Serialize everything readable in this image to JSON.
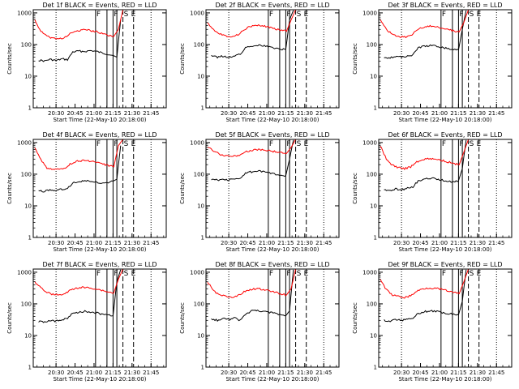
{
  "chart_data": {
    "type": "line",
    "x_ticks": [
      "20:30",
      "20:45",
      "21:00",
      "21:15",
      "21:30",
      "21:45"
    ],
    "y_ticks": [
      "1",
      "10",
      "100",
      "1000"
    ],
    "ylabel": "Counts/sec",
    "xlabel": "Start Time (22-May-10 20:18:00)",
    "xlim": [
      20.2,
      21.95
    ],
    "ylim_log10": [
      0,
      3.1
    ],
    "legend_series": {
      "events": "BLACK = Events",
      "lld": "RED = LLD"
    },
    "series_colors": {
      "events": "#000000",
      "lld": "#ff0000"
    },
    "interval_marker": "F",
    "other_markers": [
      "S",
      "E"
    ],
    "panels": [
      {
        "title": "Det 1f  BLACK = Events, RED = LLD",
        "markers": {
          "F": [
            [
              21.02,
              21.17
            ],
            [
              21.25,
              21.3
            ]
          ],
          "S": 21.38,
          "E": 21.52
        },
        "series": [
          {
            "name": "Events",
            "x": [
              20.27,
              20.35,
              20.42,
              20.5,
              20.58,
              20.65,
              20.72,
              20.8,
              20.88,
              20.95,
              21.02,
              21.1,
              21.17,
              21.25,
              21.3,
              21.35
            ],
            "values": [
              32,
              30,
              34,
              31,
              35,
              33,
              58,
              62,
              60,
              64,
              61,
              55,
              50,
              45,
              40,
              600
            ]
          },
          {
            "name": "LLD",
            "x": [
              20.22,
              20.3,
              20.38,
              20.46,
              20.54,
              20.62,
              20.7,
              20.78,
              20.86,
              20.94,
              21.02,
              21.1,
              21.18,
              21.26,
              21.32,
              21.38
            ],
            "values": [
              600,
              260,
              180,
              160,
              150,
              170,
              230,
              270,
              290,
              280,
              260,
              230,
              200,
              180,
              300,
              1500
            ]
          }
        ]
      },
      {
        "title": "Det 2f  BLACK = Events, RED = LLD",
        "markers": {
          "F": [
            [
              21.02,
              21.17
            ],
            [
              21.25,
              21.3
            ]
          ],
          "S": 21.38,
          "E": 21.52
        },
        "series": [
          {
            "name": "Events",
            "x": [
              20.27,
              20.35,
              20.42,
              20.5,
              20.58,
              20.65,
              20.72,
              20.8,
              20.88,
              20.95,
              21.02,
              21.1,
              21.17,
              21.25,
              21.3,
              21.35
            ],
            "values": [
              45,
              40,
              43,
              39,
              45,
              48,
              80,
              90,
              95,
              92,
              85,
              78,
              72,
              70,
              600,
              1200
            ]
          },
          {
            "name": "LLD",
            "x": [
              20.22,
              20.3,
              20.38,
              20.46,
              20.54,
              20.62,
              20.7,
              20.78,
              20.86,
              20.94,
              21.02,
              21.1,
              21.18,
              21.26,
              21.32,
              21.38
            ],
            "values": [
              500,
              300,
              220,
              190,
              180,
              200,
              300,
              370,
              400,
              390,
              360,
              320,
              290,
              260,
              600,
              1500
            ]
          }
        ]
      },
      {
        "title": "Det 3f  BLACK = Events, RED = LLD",
        "markers": {
          "F": [
            [
              21.02,
              21.17
            ],
            [
              21.25,
              21.3
            ]
          ],
          "S": 21.38,
          "E": 21.52
        },
        "series": [
          {
            "name": "Events",
            "x": [
              20.27,
              20.35,
              20.42,
              20.5,
              20.58,
              20.65,
              20.72,
              20.8,
              20.88,
              20.95,
              21.02,
              21.1,
              21.17,
              21.25,
              21.3,
              21.35
            ],
            "values": [
              40,
              38,
              42,
              40,
              44,
              46,
              80,
              88,
              92,
              90,
              82,
              75,
              70,
              68,
              300,
              1200
            ]
          },
          {
            "name": "LLD",
            "x": [
              20.22,
              20.3,
              20.38,
              20.46,
              20.54,
              20.62,
              20.7,
              20.78,
              20.86,
              20.94,
              21.02,
              21.1,
              21.18,
              21.26,
              21.32,
              21.38
            ],
            "values": [
              600,
              300,
              210,
              180,
              170,
              190,
              280,
              350,
              380,
              370,
              340,
              300,
              270,
              250,
              500,
              1500
            ]
          }
        ]
      },
      {
        "title": "Det 4f  BLACK = Events, RED = LLD",
        "markers": {
          "F": [
            [
              21.02,
              21.17
            ],
            [
              21.25,
              21.3
            ]
          ],
          "S": 21.38,
          "E": 21.52
        },
        "series": [
          {
            "name": "Events",
            "x": [
              20.27,
              20.35,
              20.42,
              20.5,
              20.58,
              20.65,
              20.72,
              20.8,
              20.88,
              20.95,
              21.02,
              21.1,
              21.17,
              21.25,
              21.3,
              21.35
            ],
            "values": [
              30,
              28,
              33,
              30,
              34,
              36,
              52,
              58,
              62,
              60,
              55,
              50,
              52,
              60,
              70,
              800
            ]
          },
          {
            "name": "LLD",
            "x": [
              20.22,
              20.3,
              20.38,
              20.46,
              20.54,
              20.62,
              20.7,
              20.78,
              20.86,
              20.94,
              21.02,
              21.1,
              21.18,
              21.26,
              21.32,
              21.38
            ],
            "values": [
              700,
              280,
              160,
              140,
              140,
              160,
              220,
              260,
              270,
              260,
              240,
              210,
              190,
              170,
              800,
              1500
            ]
          }
        ]
      },
      {
        "title": "Det 5f  BLACK = Events, RED = LLD",
        "markers": {
          "F": [
            [
              21.02,
              21.17
            ],
            [
              21.25,
              21.3
            ]
          ],
          "S": 21.38,
          "E": 21.52
        },
        "series": [
          {
            "name": "Events",
            "x": [
              20.27,
              20.35,
              20.42,
              20.5,
              20.58,
              20.65,
              20.72,
              20.8,
              20.88,
              20.95,
              21.02,
              21.1,
              21.17,
              21.25,
              21.3,
              21.35
            ],
            "values": [
              70,
              65,
              68,
              66,
              70,
              72,
              110,
              118,
              125,
              120,
              110,
              100,
              95,
              90,
              300,
              1200
            ]
          },
          {
            "name": "LLD",
            "x": [
              20.22,
              20.3,
              20.38,
              20.46,
              20.54,
              20.62,
              20.7,
              20.78,
              20.86,
              20.94,
              21.02,
              21.1,
              21.18,
              21.26,
              21.32,
              21.38
            ],
            "values": [
              700,
              550,
              420,
              380,
              370,
              390,
              480,
              560,
              600,
              590,
              560,
              520,
              480,
              450,
              700,
              1500
            ]
          }
        ]
      },
      {
        "title": "Det 6f  BLACK = Events, RED = LLD",
        "markers": {
          "F": [
            [
              21.02,
              21.17
            ],
            [
              21.25,
              21.3
            ]
          ],
          "S": 21.38,
          "E": 21.52
        },
        "series": [
          {
            "name": "Events",
            "x": [
              20.27,
              20.35,
              20.42,
              20.5,
              20.58,
              20.65,
              20.72,
              20.8,
              20.88,
              20.95,
              21.02,
              21.1,
              21.17,
              21.25,
              21.3,
              21.35
            ],
            "values": [
              32,
              30,
              34,
              32,
              36,
              40,
              62,
              70,
              74,
              72,
              66,
              60,
              58,
              62,
              150,
              1200
            ]
          },
          {
            "name": "LLD",
            "x": [
              20.22,
              20.3,
              20.38,
              20.46,
              20.54,
              20.62,
              20.7,
              20.78,
              20.86,
              20.94,
              21.02,
              21.1,
              21.18,
              21.26,
              21.32,
              21.38
            ],
            "values": [
              800,
              300,
              190,
              160,
              150,
              170,
              240,
              290,
              310,
              300,
              280,
              250,
              220,
              200,
              500,
              1500
            ]
          }
        ]
      },
      {
        "title": "Det 7f  BLACK = Events, RED = LLD",
        "markers": {
          "F": [
            [
              21.02,
              21.17
            ],
            [
              21.25,
              21.3
            ]
          ],
          "S": 21.38,
          "E": 21.52
        },
        "series": [
          {
            "name": "Events",
            "x": [
              20.27,
              20.35,
              20.42,
              20.5,
              20.58,
              20.65,
              20.72,
              20.8,
              20.88,
              20.95,
              21.02,
              21.1,
              21.17,
              21.25,
              21.3,
              21.35
            ],
            "values": [
              28,
              26,
              30,
              28,
              32,
              34,
              50,
              55,
              58,
              56,
              52,
              48,
              45,
              42,
              500,
              1200
            ]
          },
          {
            "name": "LLD",
            "x": [
              20.22,
              20.3,
              20.38,
              20.46,
              20.54,
              20.62,
              20.7,
              20.78,
              20.86,
              20.94,
              21.02,
              21.1,
              21.18,
              21.26,
              21.32,
              21.38
            ],
            "values": [
              500,
              330,
              230,
              200,
              190,
              210,
              280,
              320,
              330,
              320,
              300,
              270,
              240,
              220,
              600,
              1500
            ]
          }
        ]
      },
      {
        "title": "Det 8f  BLACK = Events, RED = LLD",
        "markers": {
          "F": [
            [
              21.02,
              21.17
            ],
            [
              21.25,
              21.3
            ]
          ],
          "S": 21.38,
          "E": 21.52
        },
        "series": [
          {
            "name": "Events",
            "x": [
              20.27,
              20.35,
              20.42,
              20.5,
              20.58,
              20.65,
              20.72,
              20.8,
              20.88,
              20.95,
              21.02,
              21.1,
              21.17,
              21.25,
              21.3,
              21.35
            ],
            "values": [
              34,
              30,
              35,
              32,
              36,
              30,
              45,
              60,
              62,
              58,
              55,
              50,
              45,
              42,
              60,
              1200
            ]
          },
          {
            "name": "LLD",
            "x": [
              20.22,
              20.3,
              20.38,
              20.46,
              20.54,
              20.62,
              20.7,
              20.78,
              20.86,
              20.94,
              21.02,
              21.1,
              21.18,
              21.26,
              21.32,
              21.38
            ],
            "values": [
              500,
              260,
              190,
              170,
              160,
              180,
              240,
              280,
              300,
              290,
              270,
              240,
              210,
              190,
              300,
              1500
            ]
          }
        ]
      },
      {
        "title": "Det 9f  BLACK = Events, RED = LLD",
        "markers": {
          "F": [
            [
              21.02,
              21.17
            ],
            [
              21.25,
              21.3
            ]
          ],
          "S": 21.38,
          "E": 21.52
        },
        "series": [
          {
            "name": "Events",
            "x": [
              20.27,
              20.35,
              20.42,
              20.5,
              20.58,
              20.65,
              20.72,
              20.8,
              20.88,
              20.95,
              21.02,
              21.1,
              21.17,
              21.25,
              21.3,
              21.35
            ],
            "values": [
              30,
              28,
              32,
              30,
              34,
              36,
              50,
              56,
              60,
              58,
              54,
              50,
              48,
              45,
              120,
              1200
            ]
          },
          {
            "name": "LLD",
            "x": [
              20.22,
              20.3,
              20.38,
              20.46,
              20.54,
              20.62,
              20.7,
              20.78,
              20.86,
              20.94,
              21.02,
              21.1,
              21.18,
              21.26,
              21.32,
              21.38
            ],
            "values": [
              600,
              280,
              190,
              170,
              160,
              180,
              250,
              300,
              320,
              310,
              290,
              260,
              230,
              210,
              500,
              1500
            ]
          }
        ]
      }
    ]
  }
}
